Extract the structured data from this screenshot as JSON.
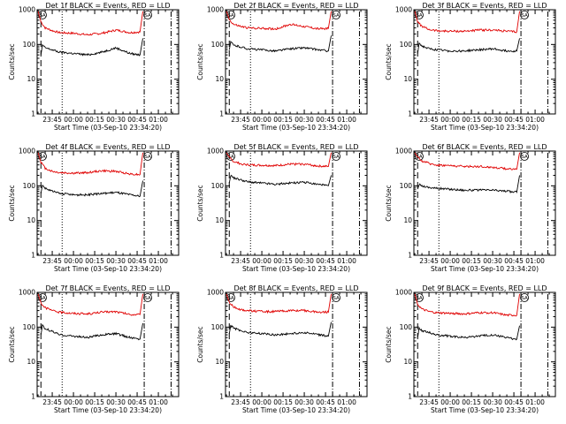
{
  "colors": {
    "background": "#ffffff",
    "axes": "#000000",
    "events_series": "#000000",
    "lld_series": "#e00000"
  },
  "chart_data": [
    {
      "type": "line",
      "title": "Det 1f BLACK = Events, RED = LLD",
      "xlabel": "Start Time (03-Sep-10 23:34:20)",
      "ylabel": "Counts/sec",
      "y_scale": "log",
      "ylim": [
        1,
        1000
      ],
      "y_tick_labels": [
        "1",
        "10",
        "100",
        "1000"
      ],
      "xlim": [
        "23:34:20",
        "01:14:20"
      ],
      "x_tick_labels": [
        "23:45",
        "00:00",
        "00:15",
        "00:30",
        "00:45",
        "01:00"
      ],
      "vertical_markers": [
        {
          "time": "23:37",
          "style": "long-dash"
        },
        {
          "time": "23:52",
          "style": "dotted"
        },
        {
          "time": "00:50",
          "style": "dash-dot"
        },
        {
          "time": "01:09",
          "style": "dash-dot"
        }
      ],
      "annotations": [
        "SA",
        "SA"
      ],
      "series": [
        {
          "x": [
            "23:35",
            "23:37",
            "23:40",
            "23:45",
            "23:50",
            "00:00",
            "00:10",
            "00:20",
            "00:30",
            "00:40",
            "00:47",
            "00:49"
          ],
          "values": [
            900,
            450,
            300,
            250,
            220,
            210,
            190,
            210,
            260,
            220,
            230,
            900
          ]
        },
        {
          "x": [
            "23:37",
            "23:38",
            "23:40",
            "23:45",
            "23:50",
            "00:00",
            "00:10",
            "00:20",
            "00:30",
            "00:40",
            "00:47",
            "00:49"
          ],
          "values": [
            50,
            95,
            80,
            70,
            60,
            55,
            50,
            60,
            80,
            55,
            50,
            150
          ]
        }
      ]
    },
    {
      "type": "line",
      "title": "Det 2f BLACK = Events, RED = LLD",
      "xlabel": "Start Time (03-Sep-10 23:34:20)",
      "ylabel": "Counts/sec",
      "y_scale": "log",
      "ylim": [
        1,
        1000
      ],
      "y_tick_labels": [
        "1",
        "10",
        "100",
        "1000"
      ],
      "xlim": [
        "23:34:20",
        "01:14:20"
      ],
      "x_tick_labels": [
        "23:45",
        "00:00",
        "00:15",
        "00:30",
        "00:45",
        "01:00"
      ],
      "vertical_markers": [
        {
          "time": "23:37",
          "style": "long-dash"
        },
        {
          "time": "23:52",
          "style": "dotted"
        },
        {
          "time": "00:50",
          "style": "dash-dot"
        },
        {
          "time": "01:09",
          "style": "dash-dot"
        }
      ],
      "annotations": [
        "SA",
        "SA"
      ],
      "series": [
        {
          "x": [
            "23:35",
            "23:37",
            "23:40",
            "23:45",
            "23:50",
            "00:00",
            "00:10",
            "00:20",
            "00:30",
            "00:40",
            "00:47",
            "00:49"
          ],
          "values": [
            900,
            520,
            380,
            330,
            300,
            290,
            280,
            380,
            330,
            280,
            290,
            900
          ]
        },
        {
          "x": [
            "23:37",
            "23:38",
            "23:40",
            "23:45",
            "23:50",
            "00:00",
            "00:10",
            "00:20",
            "00:30",
            "00:40",
            "00:47",
            "00:49"
          ],
          "values": [
            70,
            120,
            95,
            85,
            75,
            70,
            65,
            75,
            80,
            70,
            65,
            180
          ]
        }
      ]
    },
    {
      "type": "line",
      "title": "Det 3f BLACK = Events, RED = LLD",
      "xlabel": "Start Time (03-Sep-10 23:34:20)",
      "ylabel": "Counts/sec",
      "y_scale": "log",
      "ylim": [
        1,
        1000
      ],
      "y_tick_labels": [
        "1",
        "10",
        "100",
        "1000"
      ],
      "xlim": [
        "23:34:20",
        "01:14:20"
      ],
      "x_tick_labels": [
        "23:45",
        "00:00",
        "00:15",
        "00:30",
        "00:45",
        "01:00"
      ],
      "vertical_markers": [
        {
          "time": "23:37",
          "style": "long-dash"
        },
        {
          "time": "23:52",
          "style": "dotted"
        },
        {
          "time": "00:50",
          "style": "dash-dot"
        },
        {
          "time": "01:09",
          "style": "dash-dot"
        }
      ],
      "annotations": [
        "SA",
        "SA"
      ],
      "series": [
        {
          "x": [
            "23:35",
            "23:37",
            "23:40",
            "23:45",
            "23:50",
            "00:00",
            "00:10",
            "00:20",
            "00:30",
            "00:40",
            "00:47",
            "00:49"
          ],
          "values": [
            900,
            450,
            330,
            270,
            250,
            240,
            240,
            260,
            260,
            240,
            230,
            900
          ]
        },
        {
          "x": [
            "23:37",
            "23:38",
            "23:40",
            "23:45",
            "23:50",
            "00:00",
            "00:10",
            "00:20",
            "00:30",
            "00:40",
            "00:47",
            "00:49"
          ],
          "values": [
            55,
            110,
            90,
            75,
            70,
            65,
            65,
            70,
            75,
            65,
            65,
            150
          ]
        }
      ]
    },
    {
      "type": "line",
      "title": "Det 4f BLACK = Events, RED = LLD",
      "xlabel": "Start Time (03-Sep-10 23:34:20)",
      "ylabel": "Counts/sec",
      "y_scale": "log",
      "ylim": [
        1,
        1000
      ],
      "y_tick_labels": [
        "1",
        "10",
        "100",
        "1000"
      ],
      "xlim": [
        "23:34:20",
        "01:14:20"
      ],
      "x_tick_labels": [
        "23:45",
        "00:00",
        "00:15",
        "00:30",
        "00:45",
        "01:00"
      ],
      "vertical_markers": [
        {
          "time": "23:37",
          "style": "long-dash"
        },
        {
          "time": "23:52",
          "style": "dotted"
        },
        {
          "time": "00:50",
          "style": "dash-dot"
        },
        {
          "time": "01:09",
          "style": "dash-dot"
        }
      ],
      "annotations": [
        "SA",
        "SA"
      ],
      "series": [
        {
          "x": [
            "23:35",
            "23:37",
            "23:40",
            "23:45",
            "23:50",
            "00:00",
            "00:10",
            "00:20",
            "00:30",
            "00:40",
            "00:47",
            "00:49"
          ],
          "values": [
            900,
            480,
            320,
            260,
            240,
            230,
            240,
            270,
            260,
            220,
            210,
            900
          ]
        },
        {
          "x": [
            "23:37",
            "23:38",
            "23:40",
            "23:45",
            "23:50",
            "00:00",
            "00:10",
            "00:20",
            "00:30",
            "00:40",
            "00:47",
            "00:49"
          ],
          "values": [
            60,
            105,
            85,
            70,
            60,
            55,
            55,
            60,
            65,
            55,
            50,
            140
          ]
        }
      ]
    },
    {
      "type": "line",
      "title": "Det 5f BLACK = Events, RED = LLD",
      "xlabel": "Start Time (03-Sep-10 23:34:20)",
      "ylabel": "Counts/sec",
      "y_scale": "log",
      "ylim": [
        1,
        1000
      ],
      "y_tick_labels": [
        "1",
        "10",
        "100",
        "1000"
      ],
      "xlim": [
        "23:34:20",
        "01:14:20"
      ],
      "x_tick_labels": [
        "23:45",
        "00:00",
        "00:15",
        "00:30",
        "00:45",
        "01:00"
      ],
      "vertical_markers": [
        {
          "time": "23:37",
          "style": "long-dash"
        },
        {
          "time": "23:52",
          "style": "dotted"
        },
        {
          "time": "00:50",
          "style": "dash-dot"
        },
        {
          "time": "01:09",
          "style": "dash-dot"
        }
      ],
      "annotations": [
        "SA",
        "SA"
      ],
      "series": [
        {
          "x": [
            "23:35",
            "23:37",
            "23:40",
            "23:45",
            "23:50",
            "00:00",
            "00:10",
            "00:20",
            "00:30",
            "00:40",
            "00:47",
            "00:49"
          ],
          "values": [
            900,
            650,
            500,
            430,
            400,
            390,
            380,
            420,
            420,
            370,
            360,
            900
          ]
        },
        {
          "x": [
            "23:37",
            "23:38",
            "23:40",
            "23:45",
            "23:50",
            "00:00",
            "00:10",
            "00:20",
            "00:30",
            "00:40",
            "00:47",
            "00:49"
          ],
          "values": [
            120,
            200,
            170,
            150,
            130,
            120,
            110,
            120,
            125,
            110,
            100,
            200
          ]
        }
      ]
    },
    {
      "type": "line",
      "title": "Det 6f BLACK = Events, RED = LLD",
      "xlabel": "Start Time (03-Sep-10 23:34:20)",
      "ylabel": "Counts/sec",
      "y_scale": "log",
      "ylim": [
        1,
        1000
      ],
      "y_tick_labels": [
        "1",
        "10",
        "100",
        "1000"
      ],
      "xlim": [
        "23:34:20",
        "01:14:20"
      ],
      "x_tick_labels": [
        "23:45",
        "00:00",
        "00:15",
        "00:30",
        "00:45",
        "01:00"
      ],
      "vertical_markers": [
        {
          "time": "23:37",
          "style": "long-dash"
        },
        {
          "time": "23:52",
          "style": "dotted"
        },
        {
          "time": "00:50",
          "style": "dash-dot"
        },
        {
          "time": "01:09",
          "style": "dash-dot"
        }
      ],
      "annotations": [
        "SA",
        "SA"
      ],
      "series": [
        {
          "x": [
            "23:35",
            "23:37",
            "23:40",
            "23:45",
            "23:50",
            "00:00",
            "00:10",
            "00:20",
            "00:30",
            "00:40",
            "00:47",
            "00:49"
          ],
          "values": [
            900,
            650,
            520,
            440,
            400,
            380,
            360,
            360,
            340,
            310,
            300,
            900
          ]
        },
        {
          "x": [
            "23:37",
            "23:38",
            "23:40",
            "23:45",
            "23:50",
            "00:00",
            "00:10",
            "00:20",
            "00:30",
            "00:40",
            "00:47",
            "00:49"
          ],
          "values": [
            80,
            110,
            100,
            90,
            85,
            80,
            75,
            75,
            75,
            70,
            65,
            200
          ]
        }
      ]
    },
    {
      "type": "line",
      "title": "Det 7f BLACK = Events, RED = LLD",
      "xlabel": "Start Time (03-Sep-10 23:34:20)",
      "ylabel": "Counts/sec",
      "y_scale": "log",
      "ylim": [
        1,
        1000
      ],
      "y_tick_labels": [
        "1",
        "10",
        "100",
        "1000"
      ],
      "xlim": [
        "23:34:20",
        "01:14:20"
      ],
      "x_tick_labels": [
        "23:45",
        "00:00",
        "00:15",
        "00:30",
        "00:45",
        "01:00"
      ],
      "vertical_markers": [
        {
          "time": "23:37",
          "style": "long-dash"
        },
        {
          "time": "23:52",
          "style": "dotted"
        },
        {
          "time": "00:50",
          "style": "dash-dot"
        },
        {
          "time": "01:09",
          "style": "dash-dot"
        }
      ],
      "annotations": [
        "SA",
        "SA"
      ],
      "series": [
        {
          "x": [
            "23:35",
            "23:37",
            "23:40",
            "23:45",
            "23:50",
            "00:00",
            "00:10",
            "00:20",
            "00:30",
            "00:40",
            "00:47",
            "00:49"
          ],
          "values": [
            900,
            500,
            360,
            300,
            270,
            250,
            240,
            270,
            280,
            230,
            230,
            900
          ]
        },
        {
          "x": [
            "23:37",
            "23:38",
            "23:40",
            "23:45",
            "23:50",
            "00:00",
            "00:10",
            "00:20",
            "00:30",
            "00:40",
            "00:47",
            "00:49"
          ],
          "values": [
            60,
            110,
            90,
            75,
            60,
            55,
            50,
            60,
            65,
            50,
            45,
            130
          ]
        }
      ]
    },
    {
      "type": "line",
      "title": "Det 8f BLACK = Events, RED = LLD",
      "xlabel": "Start Time (03-Sep-10 23:34:20)",
      "ylabel": "Counts/sec",
      "y_scale": "log",
      "ylim": [
        1,
        1000
      ],
      "y_tick_labels": [
        "1",
        "10",
        "100",
        "1000"
      ],
      "xlim": [
        "23:34:20",
        "01:14:20"
      ],
      "x_tick_labels": [
        "23:45",
        "00:00",
        "00:15",
        "00:30",
        "00:45",
        "01:00"
      ],
      "vertical_markers": [
        {
          "time": "23:37",
          "style": "long-dash"
        },
        {
          "time": "23:52",
          "style": "dotted"
        },
        {
          "time": "00:50",
          "style": "dash-dot"
        },
        {
          "time": "01:09",
          "style": "dash-dot"
        }
      ],
      "annotations": [
        "SA",
        "SA"
      ],
      "series": [
        {
          "x": [
            "23:35",
            "23:37",
            "23:40",
            "23:45",
            "23:50",
            "00:00",
            "00:10",
            "00:20",
            "00:30",
            "00:40",
            "00:47",
            "00:49"
          ],
          "values": [
            900,
            520,
            380,
            320,
            300,
            280,
            280,
            300,
            300,
            270,
            270,
            900
          ]
        },
        {
          "x": [
            "23:37",
            "23:38",
            "23:40",
            "23:45",
            "23:50",
            "00:00",
            "00:10",
            "00:20",
            "00:30",
            "00:40",
            "00:47",
            "00:49"
          ],
          "values": [
            65,
            110,
            95,
            80,
            70,
            65,
            60,
            65,
            70,
            60,
            55,
            140
          ]
        }
      ]
    },
    {
      "type": "line",
      "title": "Det 9f BLACK = Events, RED = LLD",
      "xlabel": "Start Time (03-Sep-10 23:34:20)",
      "ylabel": "Counts/sec",
      "y_scale": "log",
      "ylim": [
        1,
        1000
      ],
      "y_tick_labels": [
        "1",
        "10",
        "100",
        "1000"
      ],
      "xlim": [
        "23:34:20",
        "01:14:20"
      ],
      "x_tick_labels": [
        "23:45",
        "00:00",
        "00:15",
        "00:30",
        "00:45",
        "01:00"
      ],
      "vertical_markers": [
        {
          "time": "23:37",
          "style": "long-dash"
        },
        {
          "time": "23:52",
          "style": "dotted"
        },
        {
          "time": "00:50",
          "style": "dash-dot"
        },
        {
          "time": "01:09",
          "style": "dash-dot"
        }
      ],
      "annotations": [
        "SA",
        "SA"
      ],
      "series": [
        {
          "x": [
            "23:35",
            "23:37",
            "23:40",
            "23:45",
            "23:50",
            "00:00",
            "00:10",
            "00:20",
            "00:30",
            "00:40",
            "00:47",
            "00:49"
          ],
          "values": [
            900,
            450,
            330,
            280,
            260,
            250,
            240,
            260,
            260,
            220,
            220,
            900
          ]
        },
        {
          "x": [
            "23:37",
            "23:38",
            "23:40",
            "23:45",
            "23:50",
            "00:00",
            "00:10",
            "00:20",
            "00:30",
            "00:40",
            "00:47",
            "00:49"
          ],
          "values": [
            50,
            95,
            80,
            70,
            60,
            55,
            50,
            55,
            60,
            50,
            45,
            110
          ]
        }
      ]
    }
  ]
}
